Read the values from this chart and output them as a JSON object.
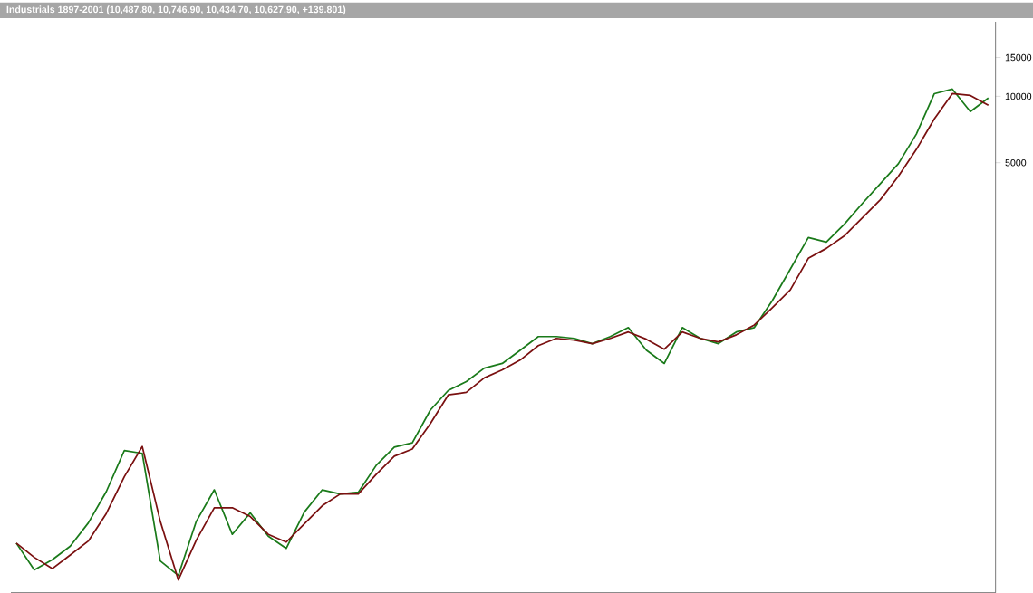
{
  "chart_data": {
    "type": "line",
    "title": "Industrials 1897-2001 (10,487.80, 10,746.90, 10,434.70, 10,627.90, +139.801)",
    "categories": [
      null,
      null,
      null,
      null,
      null,
      null,
      null,
      null,
      null,
      null,
      null,
      null,
      null,
      null,
      null,
      null,
      null,
      null,
      null,
      null,
      null,
      null,
      null,
      null,
      null,
      null,
      null,
      null,
      null,
      null,
      null,
      null,
      null,
      null,
      null,
      null,
      null,
      null,
      null,
      null,
      null,
      null,
      null,
      null,
      null,
      null,
      null,
      null,
      null,
      null,
      null,
      null,
      null,
      null,
      null
    ],
    "series": [
      {
        "color": "#1a7a1a",
        "values": [
          94,
          71,
          79,
          91,
          116,
          161,
          247,
          240,
          78,
          67,
          118,
          164,
          103,
          129,
          101,
          89,
          130,
          164,
          157,
          160,
          212,
          256,
          268,
          377,
          463,
          508,
          585,
          614,
          706,
          813,
          813,
          798,
          755,
          813,
          893,
          706,
          614,
          893,
          798,
          755,
          853,
          893,
          1184,
          1645,
          2286,
          2183,
          2630,
          3266,
          4018,
          4943,
          6742,
          10280,
          10780,
          8530,
          9830
        ]
      },
      {
        "color": "#7a1010",
        "values": [
          94,
          81,
          72,
          83,
          96,
          128,
          188,
          258,
          118,
          64,
          97,
          136,
          136,
          124,
          103,
          95,
          115,
          139,
          157,
          157,
          193,
          233,
          251,
          327,
          442,
          454,
          528,
          574,
          637,
          740,
          798,
          783,
          755,
          798,
          853,
          791,
          713,
          853,
          798,
          769,
          828,
          918,
          1099,
          1325,
          1841,
          2042,
          2328,
          2812,
          3396,
          4335,
          5741,
          7907,
          10280,
          10090,
          9100
        ]
      }
    ],
    "log": "y",
    "ylim": [
      56,
      21800
    ],
    "yticks": [
      5000,
      10000,
      15000
    ],
    "marker": "none",
    "line_style": "solid"
  }
}
